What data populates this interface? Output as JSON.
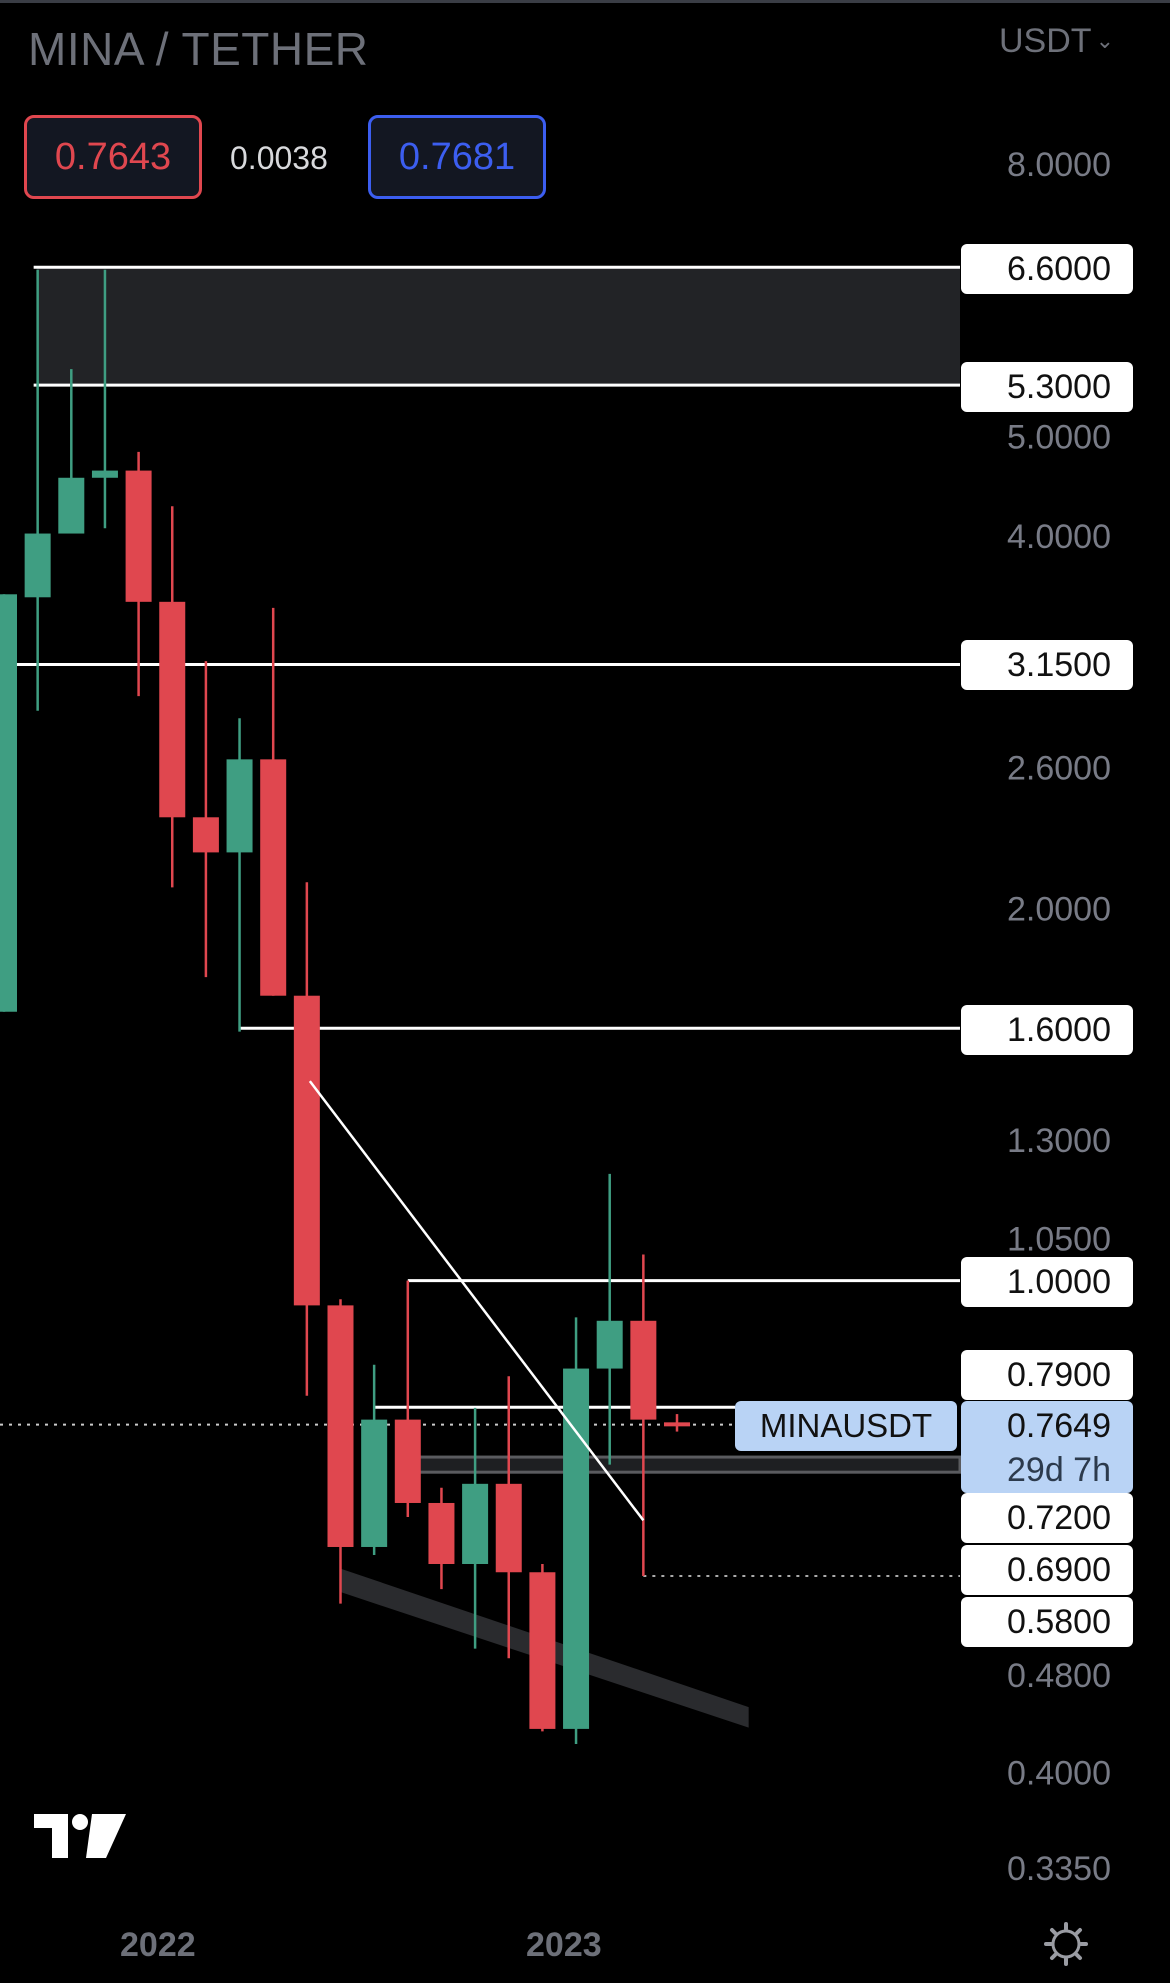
{
  "header": {
    "title": "MINA / TETHER",
    "currency": "USDT",
    "sell_price": "0.7643",
    "spread": "0.0038",
    "buy_price": "0.7681"
  },
  "chart_data": {
    "type": "candlestick",
    "y_scale": "log",
    "ylim": [
      0.31,
      9.5
    ],
    "y_ticks": [
      "8.0000",
      "5.0000",
      "4.0000",
      "2.6000",
      "2.0000",
      "1.3000",
      "1.0500",
      "0.4800",
      "0.4000",
      "0.3350"
    ],
    "x_labels": [
      {
        "label": "2022",
        "index": 5
      },
      {
        "label": "2023",
        "index": 17
      }
    ],
    "colors": {
      "up": "#3f9e82",
      "down": "#e0474f",
      "background": "#000000",
      "drawing": "#ffffff"
    },
    "candles": [
      {
        "month": "2021-08",
        "o": 1.65,
        "h": 3.59,
        "l": 1.65,
        "c": 3.59
      },
      {
        "month": "2021-09",
        "o": 3.57,
        "h": 6.57,
        "l": 2.89,
        "c": 4.02
      },
      {
        "month": "2021-10",
        "o": 4.02,
        "h": 5.46,
        "l": 4.02,
        "c": 4.46
      },
      {
        "month": "2021-11",
        "o": 4.46,
        "h": 6.57,
        "l": 4.06,
        "c": 4.52
      },
      {
        "month": "2021-12",
        "o": 4.52,
        "h": 4.68,
        "l": 2.97,
        "c": 3.54
      },
      {
        "month": "2022-01",
        "o": 3.54,
        "h": 4.23,
        "l": 2.08,
        "c": 2.37
      },
      {
        "month": "2022-02",
        "o": 2.37,
        "h": 3.17,
        "l": 1.76,
        "c": 2.22
      },
      {
        "month": "2022-03",
        "o": 2.22,
        "h": 2.85,
        "l": 1.59,
        "c": 2.64
      },
      {
        "month": "2022-04",
        "o": 2.64,
        "h": 3.5,
        "l": 1.7,
        "c": 1.7
      },
      {
        "month": "2022-05",
        "o": 1.7,
        "h": 2.1,
        "l": 0.807,
        "c": 0.955
      },
      {
        "month": "2022-06",
        "o": 0.955,
        "h": 0.966,
        "l": 0.548,
        "c": 0.609
      },
      {
        "month": "2022-07",
        "o": 0.609,
        "h": 0.855,
        "l": 0.6,
        "c": 0.772
      },
      {
        "month": "2022-08",
        "o": 0.772,
        "h": 1.0,
        "l": 0.644,
        "c": 0.661
      },
      {
        "month": "2022-09",
        "o": 0.661,
        "h": 0.68,
        "l": 0.563,
        "c": 0.59
      },
      {
        "month": "2022-10",
        "o": 0.59,
        "h": 0.789,
        "l": 0.504,
        "c": 0.685
      },
      {
        "month": "2022-11",
        "o": 0.685,
        "h": 0.837,
        "l": 0.495,
        "c": 0.581
      },
      {
        "month": "2022-12",
        "o": 0.581,
        "h": 0.59,
        "l": 0.432,
        "c": 0.434
      },
      {
        "month": "2023-01",
        "o": 0.434,
        "h": 0.934,
        "l": 0.422,
        "c": 0.849
      },
      {
        "month": "2023-02",
        "o": 0.849,
        "h": 1.22,
        "l": 0.71,
        "c": 0.928
      },
      {
        "month": "2023-03",
        "o": 0.928,
        "h": 1.05,
        "l": 0.577,
        "c": 0.772
      },
      {
        "month": "2023-04",
        "o": 0.7681,
        "h": 0.78,
        "l": 0.755,
        "c": 0.7649
      }
    ],
    "level_labels": [
      "6.6000",
      "5.3000",
      "3.1500",
      "1.6000",
      "1.0000",
      "0.7900",
      "0.7200",
      "0.6900",
      "0.5800"
    ],
    "zones": [
      {
        "from": 5.3,
        "to": 6.6
      },
      {
        "from": 0.7,
        "to": 0.72
      }
    ],
    "horizontal_lines": [
      6.6,
      5.3,
      3.15,
      1.6,
      1.0,
      0.79
    ],
    "trendline": {
      "from": {
        "index": 9,
        "price": 1.45
      },
      "to": {
        "index": 19,
        "price": 0.64
      }
    },
    "channel": {
      "from_index": 10,
      "to_index": 21,
      "top": [
        0.585,
        0.452
      ],
      "bottom": [
        0.56,
        0.435
      ]
    },
    "current_price": {
      "symbol": "MINAUSDT",
      "price": "0.7649",
      "countdown": "29d 7h"
    }
  }
}
